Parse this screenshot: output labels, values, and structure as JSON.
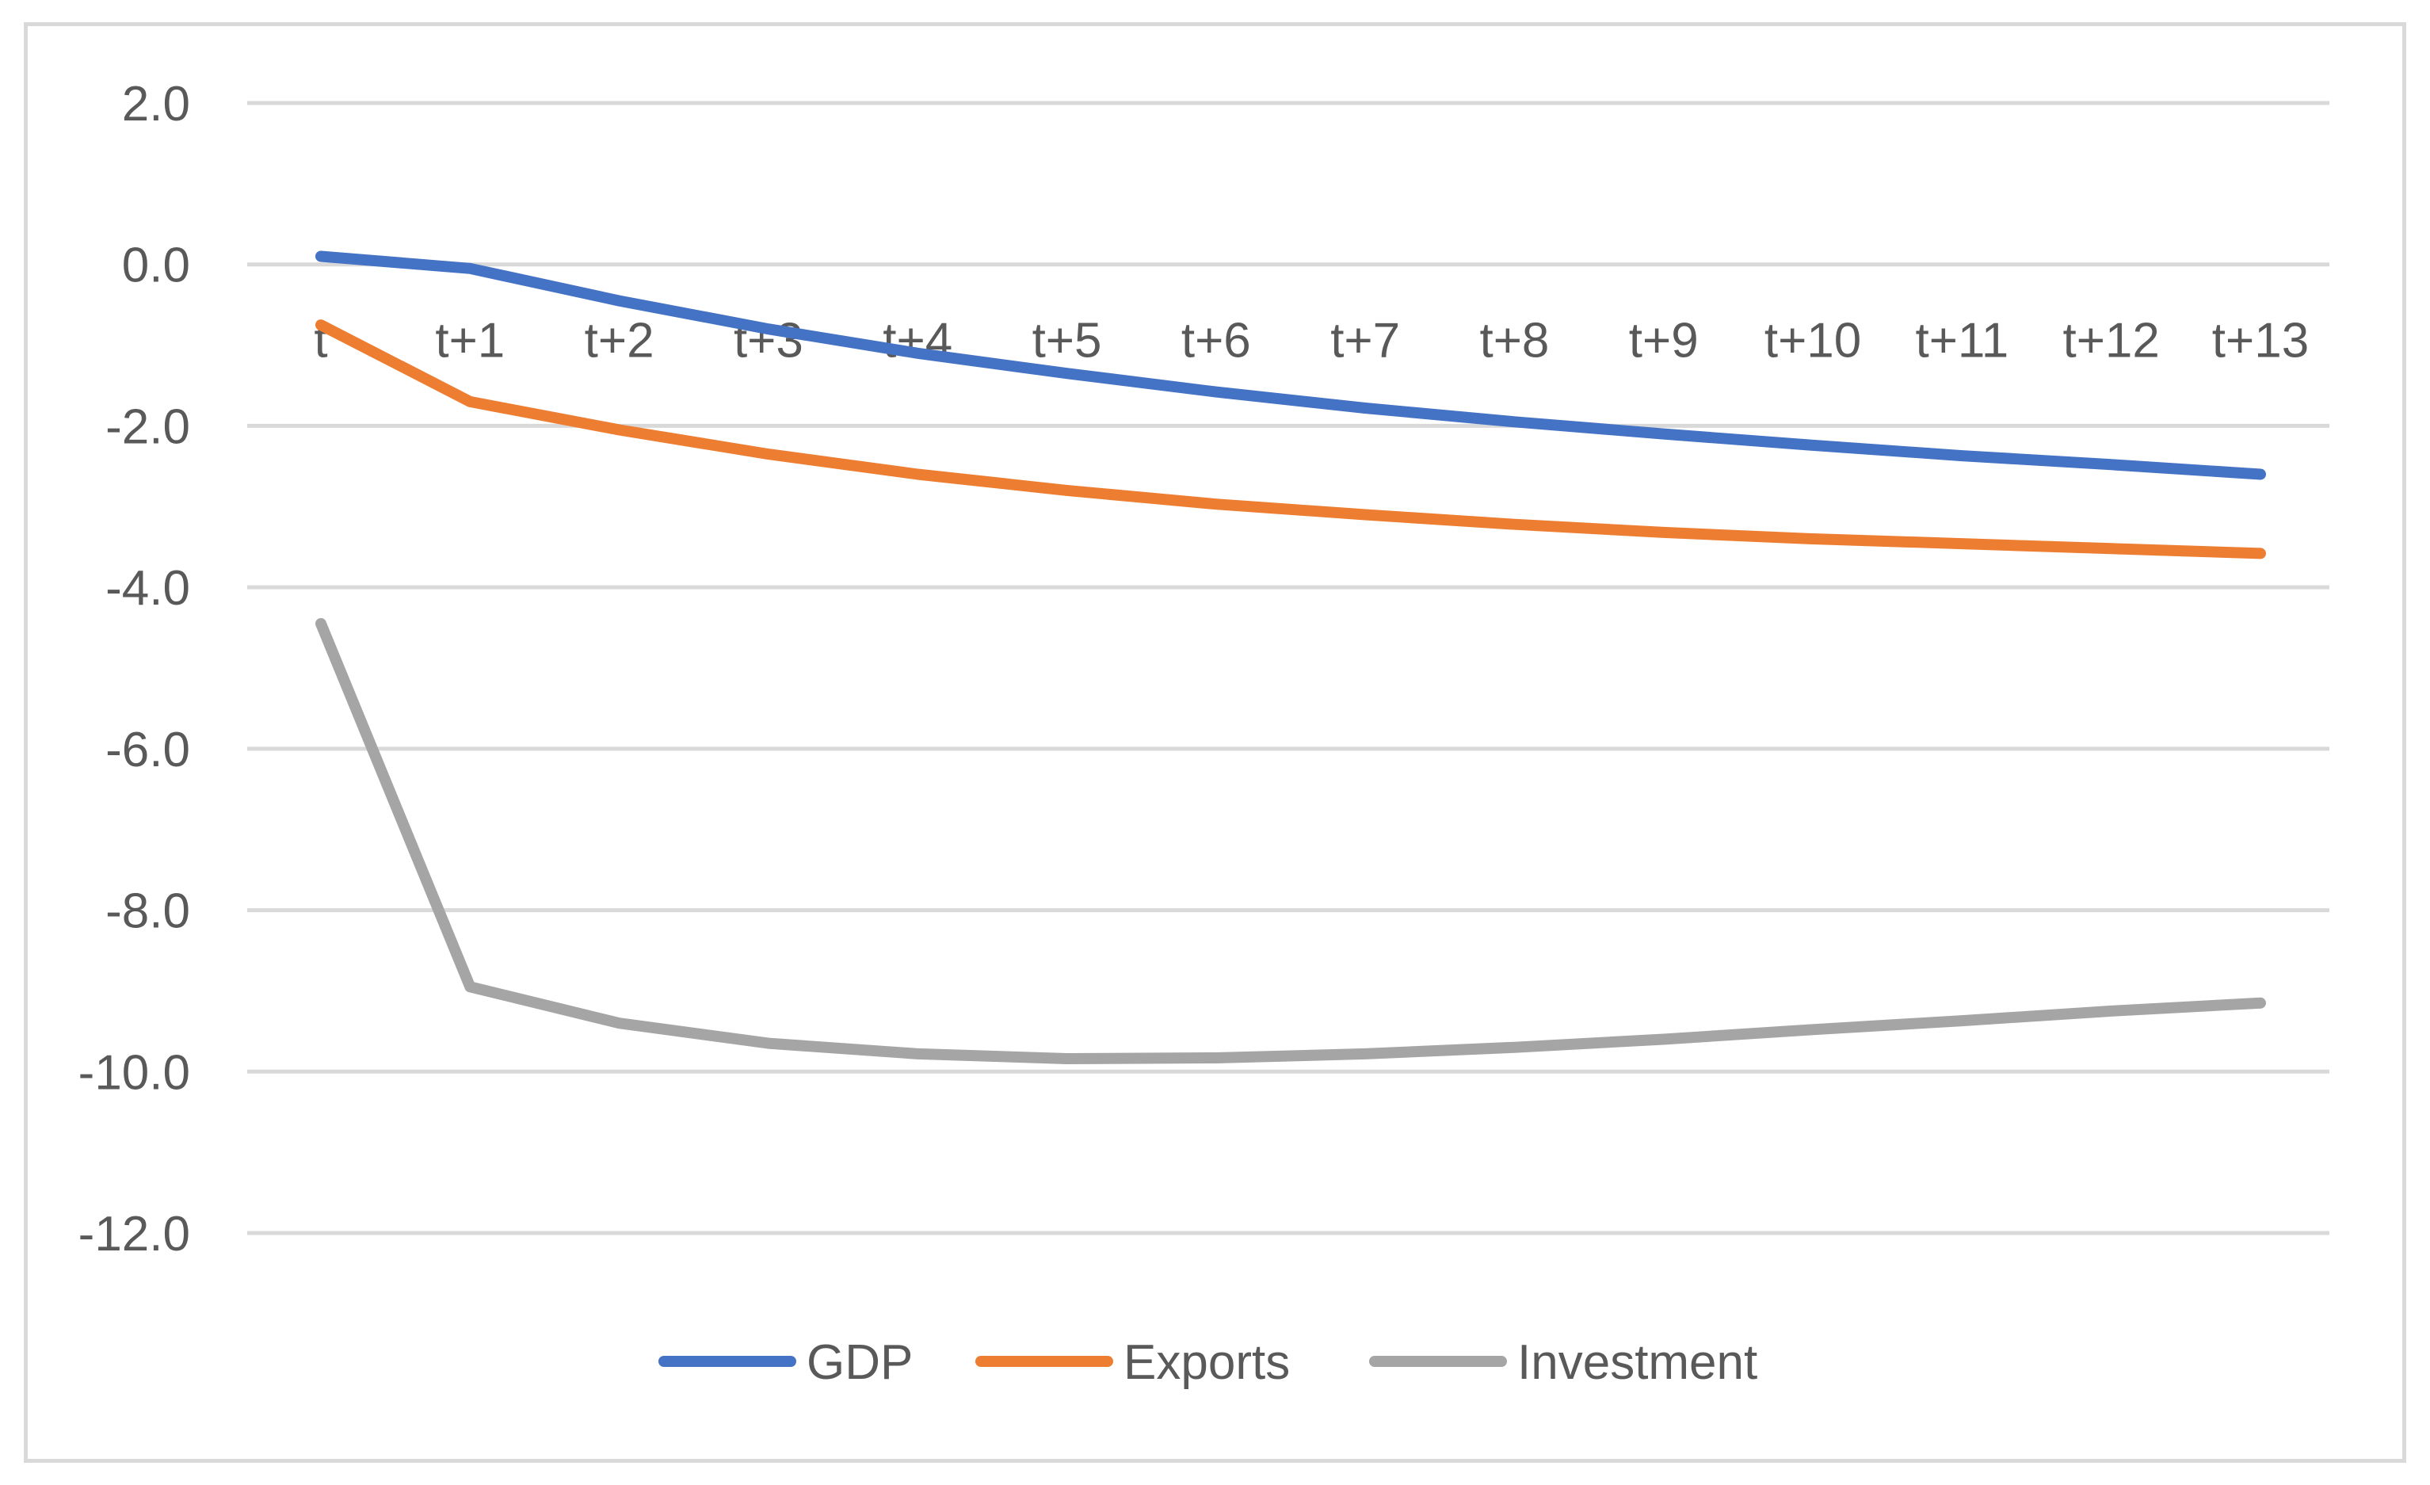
{
  "chart_data": {
    "type": "line",
    "title": "",
    "xlabel": "",
    "ylabel": "",
    "categories": [
      "t",
      "t+1",
      "t+2",
      "t+3",
      "t+4",
      "t+5",
      "t+6",
      "t+7",
      "t+8",
      "t+9",
      "t+10",
      "t+11",
      "t+12",
      "t+13"
    ],
    "ylim": [
      -12.0,
      2.0
    ],
    "yticks": [
      "2.0",
      "0.0",
      "-2.0",
      "-4.0",
      "-6.0",
      "-8.0",
      "-10.0",
      "-12.0"
    ],
    "grid": true,
    "legend_position": "bottom",
    "series": [
      {
        "name": "GDP",
        "color": "#4472c4",
        "values": [
          0.1,
          -0.05,
          -0.45,
          -0.8,
          -1.1,
          -1.35,
          -1.58,
          -1.78,
          -1.95,
          -2.1,
          -2.24,
          -2.37,
          -2.48,
          -2.6
        ]
      },
      {
        "name": "Exports",
        "color": "#ed7d31",
        "values": [
          -0.75,
          -1.7,
          -2.05,
          -2.35,
          -2.6,
          -2.8,
          -2.97,
          -3.1,
          -3.22,
          -3.32,
          -3.4,
          -3.46,
          -3.52,
          -3.58
        ]
      },
      {
        "name": "Investment",
        "color": "#a5a5a5",
        "values": [
          -4.45,
          -8.95,
          -9.4,
          -9.65,
          -9.78,
          -9.84,
          -9.83,
          -9.78,
          -9.7,
          -9.6,
          -9.48,
          -9.37,
          -9.25,
          -9.15
        ]
      }
    ]
  },
  "colors": {
    "grid": "#d9d9d9",
    "text": "#595959",
    "border": "#d9d9d9"
  }
}
